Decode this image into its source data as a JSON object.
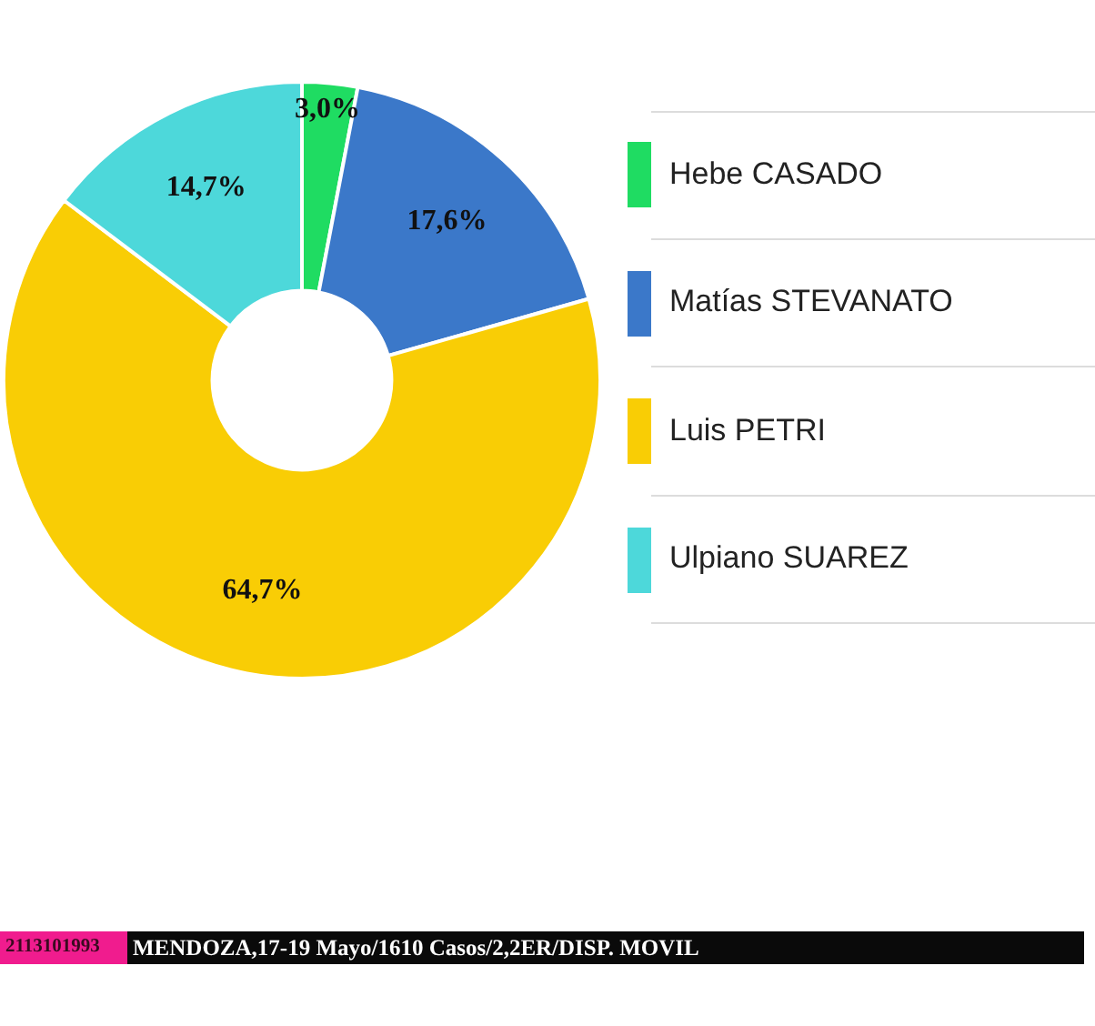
{
  "chart_data": {
    "type": "donut",
    "categories": [
      "Hebe CASADO",
      "Matías STEVANATO",
      "Luis PETRI",
      "Ulpiano SUAREZ"
    ],
    "values": [
      3.0,
      17.6,
      64.7,
      14.7
    ],
    "colors": [
      "#1fdc62",
      "#3b78c9",
      "#f9cd05",
      "#4dd8da"
    ],
    "value_labels": [
      "3,0%",
      "17,6%",
      "64,7%",
      "14,7%"
    ],
    "legend": "right",
    "annotations": [
      "2113101993",
      "MENDOZA,17-19 Mayo/1610 Casos/2,2ER/DISP. MOVIL"
    ]
  }
}
